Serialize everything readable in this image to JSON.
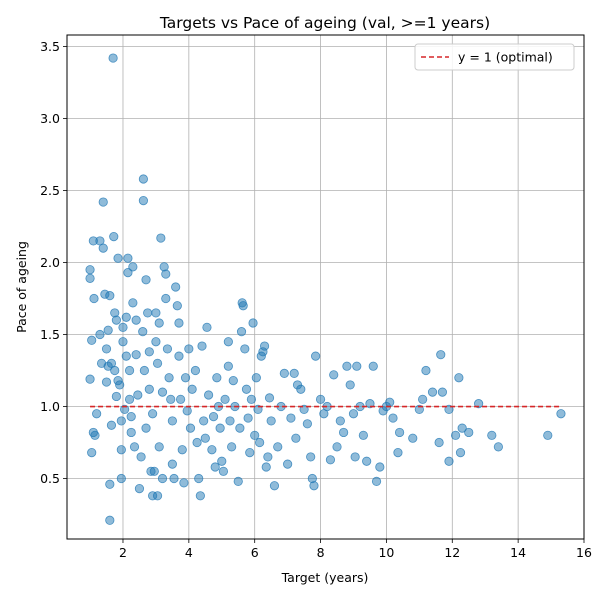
{
  "chart_data": {
    "type": "scatter",
    "title": "Targets vs Pace of ageing (val, >=1 years)",
    "xlabel": "Target (years)",
    "ylabel": "Pace of ageing",
    "xlim": [
      0.3,
      16.0
    ],
    "ylim": [
      0.08,
      3.58
    ],
    "xticks": [
      2,
      4,
      6,
      8,
      10,
      12,
      14,
      16
    ],
    "yticks": [
      0.5,
      1.0,
      1.5,
      2.0,
      2.5,
      3.0,
      3.5
    ],
    "grid": true,
    "legend_position": "upper right",
    "colors": {
      "points": "#1f77b4",
      "reference": "#d62728",
      "grid": "#b0b0b0"
    },
    "series": [
      {
        "marker": "circle",
        "points": [
          [
            1.0,
            1.19
          ],
          [
            1.0,
            1.89
          ],
          [
            1.0,
            1.95
          ],
          [
            1.05,
            1.46
          ],
          [
            1.1,
            2.15
          ],
          [
            1.12,
            1.75
          ],
          [
            1.05,
            0.68
          ],
          [
            1.1,
            0.82
          ],
          [
            1.15,
            0.8
          ],
          [
            1.2,
            0.95
          ],
          [
            1.3,
            1.5
          ],
          [
            1.3,
            2.15
          ],
          [
            1.35,
            1.3
          ],
          [
            1.4,
            2.42
          ],
          [
            1.4,
            2.1
          ],
          [
            1.45,
            1.78
          ],
          [
            1.5,
            1.4
          ],
          [
            1.55,
            1.28
          ],
          [
            1.5,
            1.17
          ],
          [
            1.55,
            1.53
          ],
          [
            1.6,
            0.46
          ],
          [
            1.6,
            0.21
          ],
          [
            1.65,
            0.87
          ],
          [
            1.6,
            1.77
          ],
          [
            1.65,
            1.3
          ],
          [
            1.7,
            3.42
          ],
          [
            1.72,
            2.18
          ],
          [
            1.75,
            1.65
          ],
          [
            1.75,
            1.25
          ],
          [
            1.8,
            1.6
          ],
          [
            1.8,
            1.07
          ],
          [
            1.85,
            1.18
          ],
          [
            1.85,
            2.03
          ],
          [
            1.9,
            1.15
          ],
          [
            1.95,
            0.7
          ],
          [
            1.95,
            0.9
          ],
          [
            1.95,
            0.5
          ],
          [
            2.0,
            1.55
          ],
          [
            2.0,
            1.45
          ],
          [
            2.05,
            0.98
          ],
          [
            2.1,
            1.35
          ],
          [
            2.1,
            1.62
          ],
          [
            2.15,
            1.93
          ],
          [
            2.15,
            2.03
          ],
          [
            2.2,
            1.25
          ],
          [
            2.2,
            1.05
          ],
          [
            2.25,
            0.82
          ],
          [
            2.25,
            0.93
          ],
          [
            2.3,
            1.72
          ],
          [
            2.3,
            1.97
          ],
          [
            2.35,
            0.72
          ],
          [
            2.4,
            1.6
          ],
          [
            2.4,
            1.36
          ],
          [
            2.45,
            1.08
          ],
          [
            2.5,
            0.43
          ],
          [
            2.55,
            0.65
          ],
          [
            2.6,
            1.52
          ],
          [
            2.62,
            2.58
          ],
          [
            2.62,
            2.43
          ],
          [
            2.65,
            1.25
          ],
          [
            2.7,
            0.85
          ],
          [
            2.7,
            1.88
          ],
          [
            2.75,
            1.65
          ],
          [
            2.8,
            1.38
          ],
          [
            2.8,
            1.12
          ],
          [
            2.85,
            0.55
          ],
          [
            2.9,
            0.38
          ],
          [
            2.9,
            0.95
          ],
          [
            2.95,
            0.55
          ],
          [
            3.0,
            1.65
          ],
          [
            3.0,
            1.45
          ],
          [
            3.05,
            1.3
          ],
          [
            3.05,
            0.38
          ],
          [
            3.1,
            0.72
          ],
          [
            3.1,
            1.58
          ],
          [
            3.15,
            2.17
          ],
          [
            3.2,
            0.5
          ],
          [
            3.2,
            1.1
          ],
          [
            3.25,
            1.97
          ],
          [
            3.3,
            1.92
          ],
          [
            3.3,
            1.75
          ],
          [
            3.35,
            1.4
          ],
          [
            3.4,
            1.2
          ],
          [
            3.45,
            1.05
          ],
          [
            3.5,
            0.9
          ],
          [
            3.5,
            0.6
          ],
          [
            3.55,
            0.5
          ],
          [
            3.6,
            1.83
          ],
          [
            3.65,
            1.7
          ],
          [
            3.7,
            1.58
          ],
          [
            3.7,
            1.35
          ],
          [
            3.75,
            1.05
          ],
          [
            3.8,
            0.7
          ],
          [
            3.85,
            0.47
          ],
          [
            3.9,
            1.2
          ],
          [
            3.95,
            0.97
          ],
          [
            4.0,
            1.4
          ],
          [
            4.05,
            0.85
          ],
          [
            4.1,
            1.12
          ],
          [
            4.2,
            1.25
          ],
          [
            4.25,
            0.75
          ],
          [
            4.3,
            0.5
          ],
          [
            4.35,
            0.38
          ],
          [
            4.4,
            1.42
          ],
          [
            4.45,
            0.9
          ],
          [
            4.5,
            0.78
          ],
          [
            4.55,
            1.55
          ],
          [
            4.6,
            1.08
          ],
          [
            4.7,
            0.7
          ],
          [
            4.75,
            0.93
          ],
          [
            4.8,
            0.58
          ],
          [
            4.85,
            1.2
          ],
          [
            4.9,
            1.0
          ],
          [
            4.95,
            0.85
          ],
          [
            5.0,
            0.62
          ],
          [
            5.05,
            0.55
          ],
          [
            5.1,
            1.05
          ],
          [
            5.2,
            1.45
          ],
          [
            5.2,
            1.28
          ],
          [
            5.25,
            0.9
          ],
          [
            5.3,
            0.72
          ],
          [
            5.35,
            1.18
          ],
          [
            5.4,
            1.0
          ],
          [
            5.5,
            0.48
          ],
          [
            5.55,
            0.85
          ],
          [
            5.6,
            1.52
          ],
          [
            5.62,
            1.72
          ],
          [
            5.65,
            1.7
          ],
          [
            5.7,
            1.4
          ],
          [
            5.75,
            1.12
          ],
          [
            5.8,
            0.92
          ],
          [
            5.85,
            0.68
          ],
          [
            5.9,
            1.05
          ],
          [
            5.95,
            1.58
          ],
          [
            6.0,
            0.8
          ],
          [
            6.05,
            1.2
          ],
          [
            6.1,
            0.98
          ],
          [
            6.15,
            0.75
          ],
          [
            6.2,
            1.35
          ],
          [
            6.25,
            1.38
          ],
          [
            6.3,
            1.42
          ],
          [
            6.35,
            0.58
          ],
          [
            6.4,
            0.65
          ],
          [
            6.45,
            1.06
          ],
          [
            6.5,
            0.9
          ],
          [
            6.6,
            0.45
          ],
          [
            6.7,
            0.72
          ],
          [
            6.8,
            1.0
          ],
          [
            6.9,
            1.23
          ],
          [
            7.0,
            0.6
          ],
          [
            7.1,
            0.92
          ],
          [
            7.2,
            1.23
          ],
          [
            7.25,
            0.78
          ],
          [
            7.3,
            1.15
          ],
          [
            7.4,
            1.12
          ],
          [
            7.5,
            0.98
          ],
          [
            7.6,
            0.88
          ],
          [
            7.7,
            0.65
          ],
          [
            7.75,
            0.5
          ],
          [
            7.8,
            0.45
          ],
          [
            7.85,
            1.35
          ],
          [
            8.0,
            1.05
          ],
          [
            8.1,
            0.95
          ],
          [
            8.2,
            1.0
          ],
          [
            8.3,
            0.63
          ],
          [
            8.4,
            1.22
          ],
          [
            8.5,
            0.72
          ],
          [
            8.6,
            0.9
          ],
          [
            8.7,
            0.82
          ],
          [
            8.8,
            1.28
          ],
          [
            8.9,
            1.15
          ],
          [
            9.0,
            0.95
          ],
          [
            9.05,
            0.65
          ],
          [
            9.1,
            1.28
          ],
          [
            9.2,
            1.0
          ],
          [
            9.3,
            0.8
          ],
          [
            9.4,
            0.62
          ],
          [
            9.5,
            1.02
          ],
          [
            9.6,
            1.28
          ],
          [
            9.7,
            0.48
          ],
          [
            9.8,
            0.58
          ],
          [
            9.9,
            0.97
          ],
          [
            10.0,
            1.0
          ],
          [
            10.1,
            1.03
          ],
          [
            10.2,
            0.92
          ],
          [
            10.35,
            0.68
          ],
          [
            10.4,
            0.82
          ],
          [
            10.8,
            0.78
          ],
          [
            11.0,
            0.98
          ],
          [
            11.1,
            1.05
          ],
          [
            11.2,
            1.25
          ],
          [
            11.4,
            1.1
          ],
          [
            11.6,
            0.75
          ],
          [
            11.65,
            1.36
          ],
          [
            11.7,
            1.1
          ],
          [
            11.9,
            0.62
          ],
          [
            11.9,
            0.98
          ],
          [
            12.1,
            0.8
          ],
          [
            12.2,
            1.2
          ],
          [
            12.25,
            0.68
          ],
          [
            12.3,
            0.85
          ],
          [
            12.5,
            0.82
          ],
          [
            12.8,
            1.02
          ],
          [
            13.2,
            0.8
          ],
          [
            13.4,
            0.72
          ],
          [
            14.9,
            0.8
          ],
          [
            15.3,
            0.95
          ]
        ]
      }
    ],
    "reference_line": {
      "label": "y = 1 (optimal)",
      "y": 1,
      "x_range": [
        1.0,
        15.3
      ],
      "style": "dashed"
    }
  }
}
